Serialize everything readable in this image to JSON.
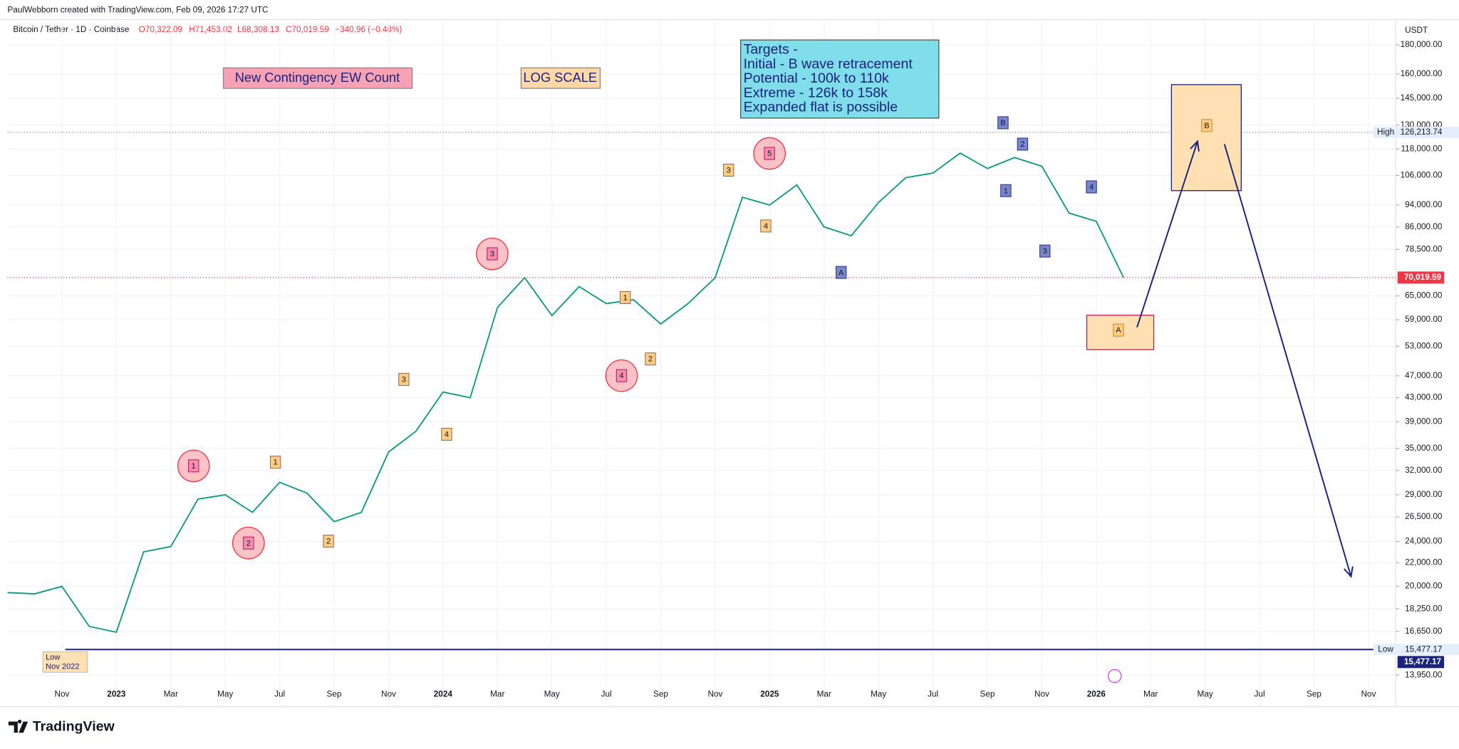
{
  "chart_data": {
    "type": "line",
    "credit": "PaulWebborn created with TradingView.com, Feb 09, 2026 17:27 UTC",
    "title": "Bitcoin / Tether · 1D · Coinbase",
    "open": "O70,322.09",
    "high_price": "H71,453.02",
    "low_price": "L68,308.13",
    "close": "C70,019.59",
    "change": "−340.96 (−0.48%)",
    "currency": "USDT",
    "brand": "TradingView",
    "log_scale": true,
    "grid": true,
    "color": "#089981",
    "x": [
      "2022-09",
      "2022-10",
      "2022-11",
      "2022-12",
      "2023-01",
      "2023-02",
      "2023-03",
      "2023-04",
      "2023-05",
      "2023-06",
      "2023-07",
      "2023-08",
      "2023-09",
      "2023-10",
      "2023-11",
      "2023-12",
      "2024-01",
      "2024-02",
      "2024-03",
      "2024-04",
      "2024-05",
      "2024-06",
      "2024-07",
      "2024-08",
      "2024-09",
      "2024-10",
      "2024-11",
      "2024-12",
      "2025-01",
      "2025-02",
      "2025-03",
      "2025-04",
      "2025-05",
      "2025-06",
      "2025-07",
      "2025-08",
      "2025-09",
      "2025-10",
      "2025-11",
      "2025-12",
      "2026-01",
      "2026-02"
    ],
    "values": [
      19500,
      19400,
      20000,
      17000,
      16600,
      23000,
      23500,
      28500,
      29000,
      27000,
      30500,
      29200,
      26000,
      27000,
      34500,
      37500,
      44000,
      43000,
      62000,
      70000,
      60000,
      67500,
      63000,
      64000,
      58000,
      63000,
      70000,
      97000,
      94000,
      102000,
      86000,
      83000,
      95000,
      105000,
      107000,
      116000,
      109000,
      114000,
      110000,
      91000,
      88000,
      70019.59
    ],
    "xlim": [
      "2022-09",
      "2026-12"
    ],
    "xticks": [
      {
        "value": "2022-11",
        "label": "Nov"
      },
      {
        "value": "2023-01",
        "label": "2023"
      },
      {
        "value": "2023-03",
        "label": "Mar"
      },
      {
        "value": "2023-05",
        "label": "May"
      },
      {
        "value": "2023-07",
        "label": "Jul"
      },
      {
        "value": "2023-09",
        "label": "Sep"
      },
      {
        "value": "2023-11",
        "label": "Nov"
      },
      {
        "value": "2024-01",
        "label": "2024"
      },
      {
        "value": "2024-03",
        "label": "Mar"
      },
      {
        "value": "2024-05",
        "label": "May"
      },
      {
        "value": "2024-07",
        "label": "Jul"
      },
      {
        "value": "2024-09",
        "label": "Sep"
      },
      {
        "value": "2024-11",
        "label": "Nov"
      },
      {
        "value": "2025-01",
        "label": "2025"
      },
      {
        "value": "2025-03",
        "label": "Mar"
      },
      {
        "value": "2025-05",
        "label": "May"
      },
      {
        "value": "2025-07",
        "label": "Jul"
      },
      {
        "value": "2025-09",
        "label": "Sep"
      },
      {
        "value": "2025-11",
        "label": "Nov"
      },
      {
        "value": "2026-01",
        "label": "2026"
      },
      {
        "value": "2026-03",
        "label": "Mar"
      },
      {
        "value": "2026-05",
        "label": "May"
      },
      {
        "value": "2026-07",
        "label": "Jul"
      },
      {
        "value": "2026-09",
        "label": "Sep"
      },
      {
        "value": "2026-11",
        "label": "Nov"
      }
    ],
    "ylim": [
      13434,
      198800
    ],
    "yticks": [
      {
        "value": 13950,
        "label": "13,950.00"
      },
      {
        "value": 16650,
        "label": "16,650.00"
      },
      {
        "value": 18250,
        "label": "18,250.00"
      },
      {
        "value": 20000,
        "label": "20,000.00"
      },
      {
        "value": 22000,
        "label": "22,000.00"
      },
      {
        "value": 24000,
        "label": "24,000.00"
      },
      {
        "value": 26500,
        "label": "26,500.00"
      },
      {
        "value": 29000,
        "label": "29,000.00"
      },
      {
        "value": 32000,
        "label": "32,000.00"
      },
      {
        "value": 35000,
        "label": "35,000.00"
      },
      {
        "value": 39000,
        "label": "39,000.00"
      },
      {
        "value": 43000,
        "label": "43,000.00"
      },
      {
        "value": 47000,
        "label": "47,000.00"
      },
      {
        "value": 53000,
        "label": "53,000.00"
      },
      {
        "value": 59000,
        "label": "59,000.00"
      },
      {
        "value": 65000,
        "label": "65,000.00"
      },
      {
        "value": 78500,
        "label": "78,500.00"
      },
      {
        "value": 86000,
        "label": "86,000.00"
      },
      {
        "value": 94000,
        "label": "94,000.00"
      },
      {
        "value": 106000,
        "label": "106,000.00"
      },
      {
        "value": 118000,
        "label": "118,000.00"
      },
      {
        "value": 130000,
        "label": "130,000.00"
      },
      {
        "value": 145000,
        "label": "145,000.00"
      },
      {
        "value": 160000,
        "label": "160,000.00"
      },
      {
        "value": 180000,
        "label": "180,000.00"
      }
    ],
    "last_price": {
      "value": 70019.59,
      "label": "70,019.59"
    },
    "high": {
      "name": "High",
      "value": 126213.74,
      "label": "126,213.74"
    },
    "low": {
      "name": "Low",
      "value": 15477.17,
      "label": "15,477.17"
    },
    "annotations": {
      "title_box": "New Contingency EW Count",
      "scale_box": "LOG SCALE",
      "targets": [
        "Targets -",
        "Initial - B wave retracement",
        "Potential - 100k to 110k",
        "Extreme - 126k to 158k",
        "Expanded flat is possible"
      ],
      "circle_labels": [
        "1",
        "2",
        "3",
        "4",
        "5"
      ],
      "orange_labels": [
        "1",
        "2",
        "3",
        "4",
        "1",
        "2",
        "3",
        "4"
      ],
      "blue_labels": [
        "A",
        "B",
        "1",
        "2",
        "3",
        "4"
      ],
      "box_labels": [
        "A",
        "B"
      ],
      "low_note": [
        "Low",
        "Nov 2022"
      ]
    }
  }
}
